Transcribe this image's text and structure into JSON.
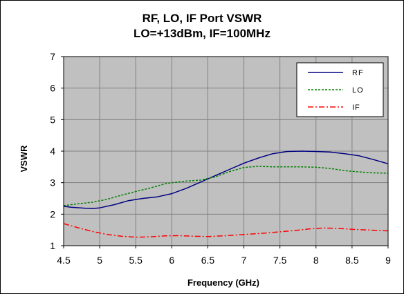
{
  "chart_data": {
    "type": "line",
    "title": "RF, LO, IF Port VSWR",
    "subtitle": "LO=+13dBm, IF=100MHz",
    "xlabel": "Frequency (GHz)",
    "ylabel": "VSWR",
    "xlim": [
      4.5,
      9
    ],
    "ylim": [
      1,
      7
    ],
    "xticks": [
      "4.5",
      "5",
      "5.5",
      "6",
      "6.5",
      "7",
      "7.5",
      "8",
      "8.5",
      "9"
    ],
    "yticks": [
      "1",
      "2",
      "3",
      "4",
      "5",
      "6",
      "7"
    ],
    "grid": true,
    "legend_position": "top-right",
    "background": "#c0c0c0",
    "series": [
      {
        "name": "RF",
        "color": "#000080",
        "style": "solid",
        "x": [
          4.5,
          4.6,
          4.8,
          4.9,
          5.0,
          5.2,
          5.4,
          5.6,
          5.8,
          6.0,
          6.2,
          6.4,
          6.6,
          6.8,
          7.0,
          7.2,
          7.4,
          7.6,
          7.8,
          8.0,
          8.2,
          8.4,
          8.6,
          8.8,
          9.0
        ],
        "values": [
          2.25,
          2.22,
          2.19,
          2.18,
          2.2,
          2.3,
          2.43,
          2.5,
          2.55,
          2.65,
          2.82,
          3.02,
          3.22,
          3.42,
          3.62,
          3.78,
          3.92,
          3.99,
          4.0,
          3.99,
          3.97,
          3.92,
          3.85,
          3.73,
          3.6
        ]
      },
      {
        "name": "LO",
        "color": "#008000",
        "style": "dotted",
        "x": [
          4.5,
          4.7,
          4.9,
          5.1,
          5.3,
          5.5,
          5.7,
          5.9,
          6.0,
          6.2,
          6.4,
          6.6,
          6.8,
          7.0,
          7.2,
          7.4,
          7.6,
          7.8,
          8.0,
          8.2,
          8.4,
          8.6,
          8.8,
          9.0
        ],
        "values": [
          2.27,
          2.33,
          2.38,
          2.47,
          2.6,
          2.72,
          2.83,
          2.96,
          3.0,
          3.05,
          3.08,
          3.18,
          3.35,
          3.48,
          3.52,
          3.5,
          3.5,
          3.5,
          3.49,
          3.45,
          3.38,
          3.34,
          3.31,
          3.3
        ]
      },
      {
        "name": "IF",
        "color": "#ff0000",
        "style": "dashdot",
        "x": [
          4.5,
          4.7,
          4.9,
          5.1,
          5.3,
          5.5,
          5.7,
          5.9,
          6.1,
          6.3,
          6.5,
          6.7,
          6.9,
          7.1,
          7.3,
          7.5,
          7.7,
          7.9,
          8.1,
          8.3,
          8.5,
          8.7,
          8.9,
          9.0
        ],
        "values": [
          1.7,
          1.57,
          1.45,
          1.36,
          1.3,
          1.27,
          1.28,
          1.31,
          1.32,
          1.3,
          1.29,
          1.31,
          1.34,
          1.37,
          1.4,
          1.44,
          1.48,
          1.53,
          1.56,
          1.55,
          1.52,
          1.5,
          1.48,
          1.47
        ]
      }
    ]
  }
}
